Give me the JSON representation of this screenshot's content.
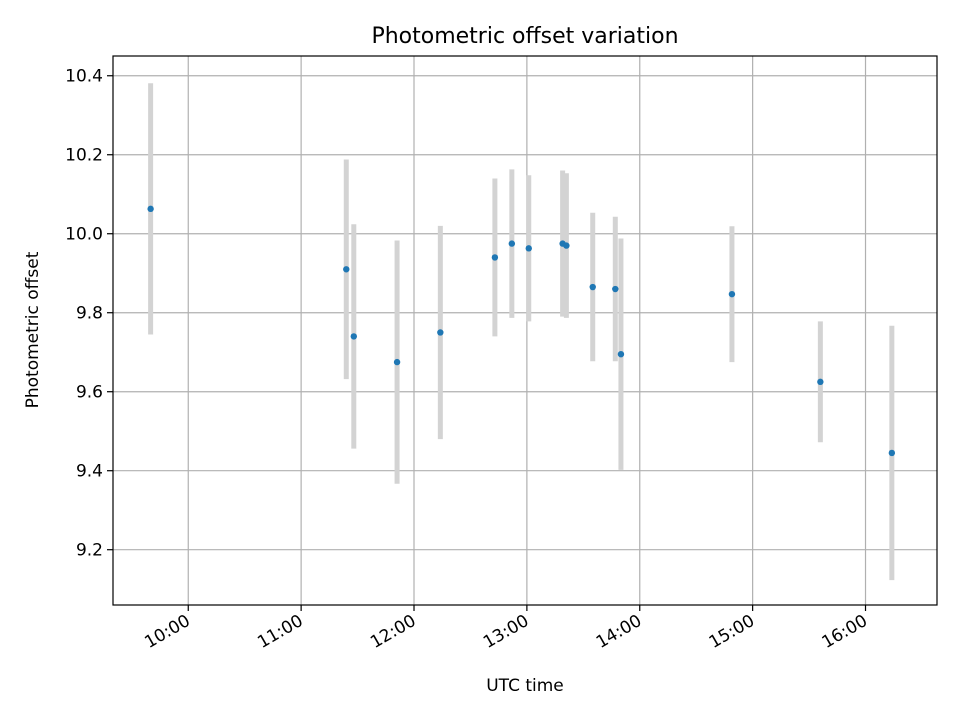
{
  "chart_data": {
    "type": "scatter",
    "title": "Photometric offset variation",
    "xlabel": "UTC time",
    "ylabel": "Photometric offset",
    "x_unit": "UTC clock time (HH:MM)",
    "xlim": [
      "09:20",
      "16:38"
    ],
    "ylim": [
      9.06,
      10.45
    ],
    "xticks": [
      "10:00",
      "11:00",
      "12:00",
      "13:00",
      "14:00",
      "15:00",
      "16:00"
    ],
    "yticks": [
      "9.2",
      "9.4",
      "9.6",
      "9.8",
      "10.0",
      "10.2",
      "10.4"
    ],
    "grid": true,
    "legend": false,
    "point_color": "#1f77b4",
    "errorbar_color": "#d3d3d3",
    "series": [
      {
        "points": [
          {
            "x": "09:40",
            "y": 10.063,
            "yerr": 0.318
          },
          {
            "x": "11:24",
            "y": 9.91,
            "yerr": 0.278
          },
          {
            "x": "11:28",
            "y": 9.74,
            "yerr": 0.284
          },
          {
            "x": "11:51",
            "y": 9.675,
            "yerr": 0.308
          },
          {
            "x": "12:14",
            "y": 9.75,
            "yerr": 0.27
          },
          {
            "x": "12:43",
            "y": 9.94,
            "yerr": 0.2
          },
          {
            "x": "12:52",
            "y": 9.975,
            "yerr": 0.188
          },
          {
            "x": "13:01",
            "y": 9.963,
            "yerr": 0.185
          },
          {
            "x": "13:19",
            "y": 9.975,
            "yerr": 0.185
          },
          {
            "x": "13:21",
            "y": 9.97,
            "yerr": 0.183
          },
          {
            "x": "13:35",
            "y": 9.865,
            "yerr": 0.188
          },
          {
            "x": "13:47",
            "y": 9.86,
            "yerr": 0.183
          },
          {
            "x": "13:50",
            "y": 9.695,
            "yerr": 0.293
          },
          {
            "x": "14:49",
            "y": 9.847,
            "yerr": 0.172
          },
          {
            "x": "15:36",
            "y": 9.625,
            "yerr": 0.153
          },
          {
            "x": "16:14",
            "y": 9.445,
            "yerr": 0.322
          }
        ]
      }
    ]
  }
}
